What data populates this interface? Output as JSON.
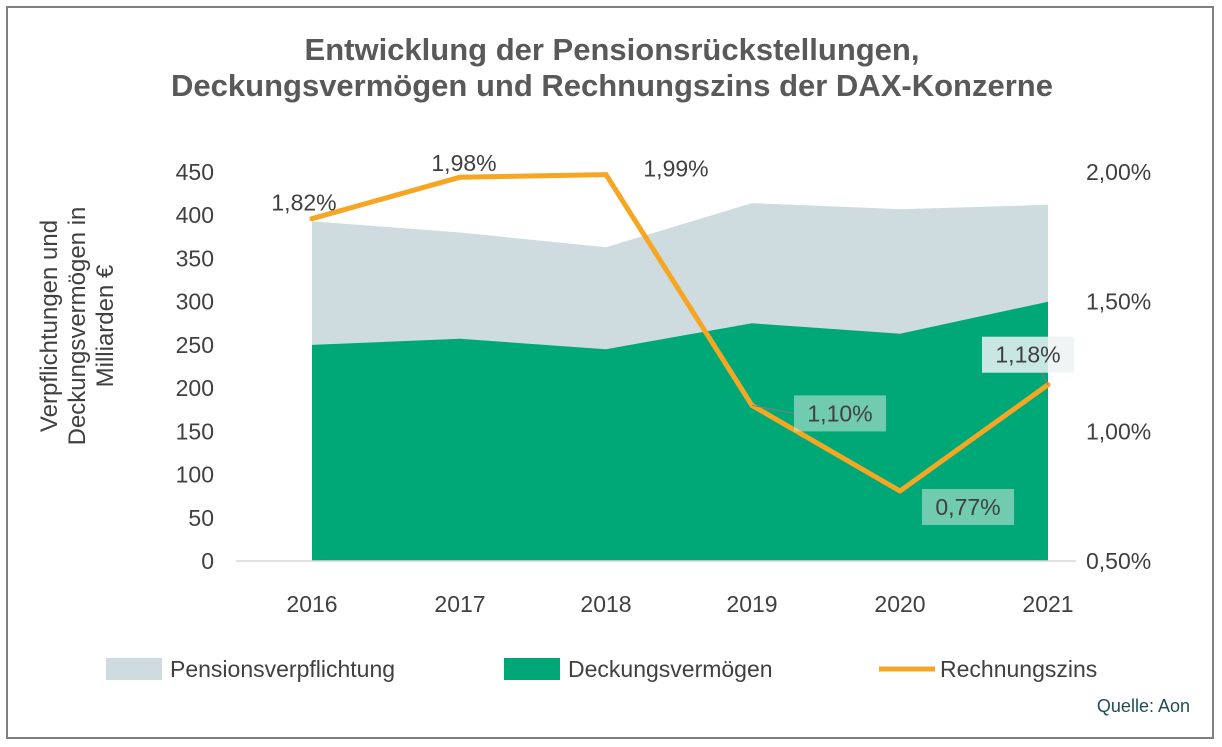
{
  "chart_data": {
    "type": "area",
    "title_lines": [
      "Entwicklung der Pensionsrückstellungen,",
      "Deckungsvermögen und Rechnungszins der DAX-Konzerne"
    ],
    "categories": [
      "2016",
      "2017",
      "2018",
      "2019",
      "2020",
      "2021"
    ],
    "ylabel_lines": [
      "Verpflichtungen und",
      "Deckungsvermögen in",
      "Milliarden €"
    ],
    "y_left": {
      "range": [
        0,
        450
      ],
      "ticks": [
        0,
        50,
        100,
        150,
        200,
        250,
        300,
        350,
        400,
        450
      ]
    },
    "y_right": {
      "range": [
        0.5,
        2.0
      ],
      "ticks": [
        0.5,
        1.0,
        1.5,
        2.0
      ],
      "tick_labels": [
        "0,50%",
        "1,00%",
        "1,50%",
        "2,00%"
      ]
    },
    "series": [
      {
        "name": "Pensionsverpflichtung",
        "type": "area",
        "axis": "left",
        "color": "#cfdcdf",
        "values": [
          393,
          380,
          363,
          414,
          407,
          412
        ]
      },
      {
        "name": "Deckungsvermögen",
        "type": "area",
        "axis": "left",
        "color": "#00a878",
        "values": [
          250,
          257,
          245,
          275,
          263,
          300
        ]
      },
      {
        "name": "Rechnungszins",
        "type": "line",
        "axis": "right",
        "color": "#f5a623",
        "values": [
          1.82,
          1.98,
          1.99,
          1.1,
          0.77,
          1.18
        ],
        "labels": [
          "1,82%",
          "1,98%",
          "1,99%",
          "1,10%",
          "0,77%",
          "1,18%"
        ]
      }
    ],
    "legend": {
      "position": "bottom",
      "items": [
        "Pensionsverpflichtung",
        "Deckungsvermögen",
        "Rechnungszins"
      ]
    },
    "grid": false
  },
  "source": "Quelle: Aon"
}
